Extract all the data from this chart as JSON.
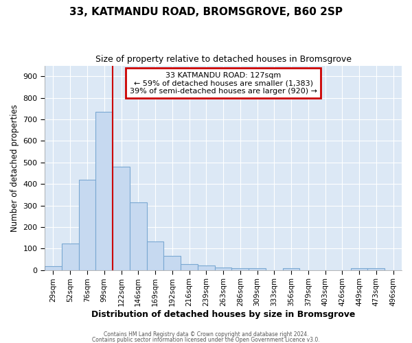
{
  "title_line1": "33, KATMANDU ROAD, BROMSGROVE, B60 2SP",
  "title_line2": "Size of property relative to detached houses in Bromsgrove",
  "xlabel": "Distribution of detached houses by size in Bromsgrove",
  "ylabel": "Number of detached properties",
  "categories": [
    "29sqm",
    "52sqm",
    "76sqm",
    "99sqm",
    "122sqm",
    "146sqm",
    "169sqm",
    "192sqm",
    "216sqm",
    "239sqm",
    "263sqm",
    "286sqm",
    "309sqm",
    "333sqm",
    "356sqm",
    "379sqm",
    "403sqm",
    "426sqm",
    "449sqm",
    "473sqm",
    "496sqm"
  ],
  "values": [
    20,
    125,
    420,
    735,
    480,
    315,
    133,
    68,
    28,
    22,
    13,
    8,
    8,
    0,
    8,
    0,
    0,
    0,
    8,
    8,
    0
  ],
  "bar_color": "#c6d9f0",
  "bar_edge_color": "#7aa8d2",
  "vline_color": "#cc0000",
  "annotation_text": "33 KATMANDU ROAD: 127sqm\n← 59% of detached houses are smaller (1,383)\n39% of semi-detached houses are larger (920) →",
  "annotation_box_color": "#ffffff",
  "annotation_box_edge_color": "#cc0000",
  "ylim": [
    0,
    950
  ],
  "yticks": [
    0,
    100,
    200,
    300,
    400,
    500,
    600,
    700,
    800,
    900
  ],
  "plot_bg_color": "#dce8f5",
  "fig_bg_color": "#ffffff",
  "grid_color": "#ffffff",
  "footer_line1": "Contains HM Land Registry data © Crown copyright and database right 2024.",
  "footer_line2": "Contains public sector information licensed under the Open Government Licence v3.0."
}
